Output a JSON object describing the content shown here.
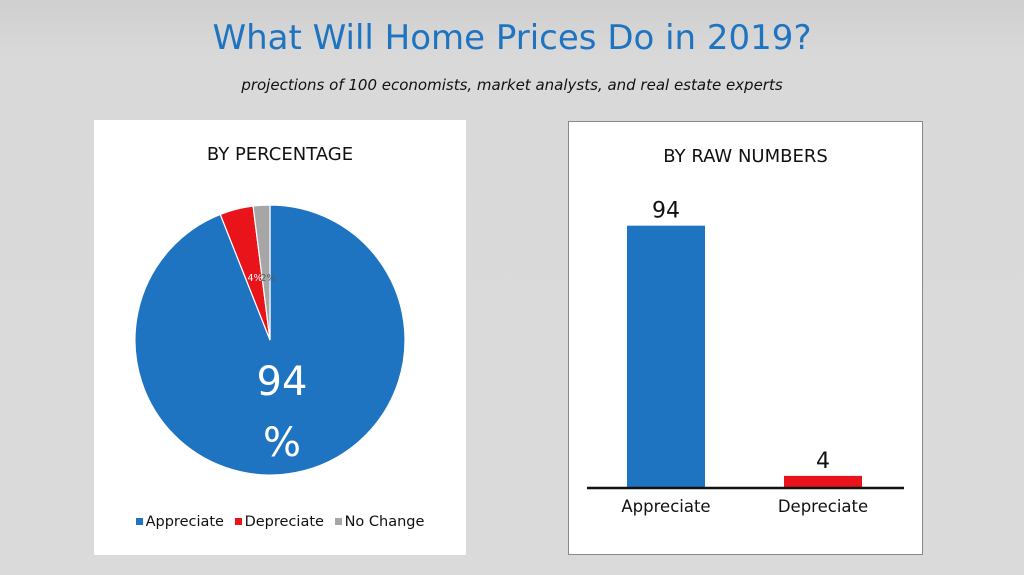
{
  "title": "What Will Home Prices Do in 2019?",
  "subtitle": "projections of 100 economists, market analysts, and real estate experts",
  "colors": {
    "appreciate": "#1f74c1",
    "depreciate": "#e8141a",
    "no_change": "#a6a6a6",
    "title": "#1f74c1"
  },
  "chart_data": [
    {
      "type": "pie",
      "title": "BY PERCENTAGE",
      "categories": [
        "Appreciate",
        "Depreciate",
        "No Change"
      ],
      "values": [
        94,
        4,
        2
      ],
      "data_labels": [
        "94 %",
        "4%",
        "2%"
      ],
      "legend": "bottom"
    },
    {
      "type": "bar",
      "title": "BY RAW NUMBERS",
      "categories": [
        "Appreciate",
        "Depreciate"
      ],
      "values": [
        94,
        4
      ],
      "data_labels": [
        "94",
        "4"
      ],
      "ylim": [
        0,
        100
      ],
      "grid": false
    }
  ]
}
